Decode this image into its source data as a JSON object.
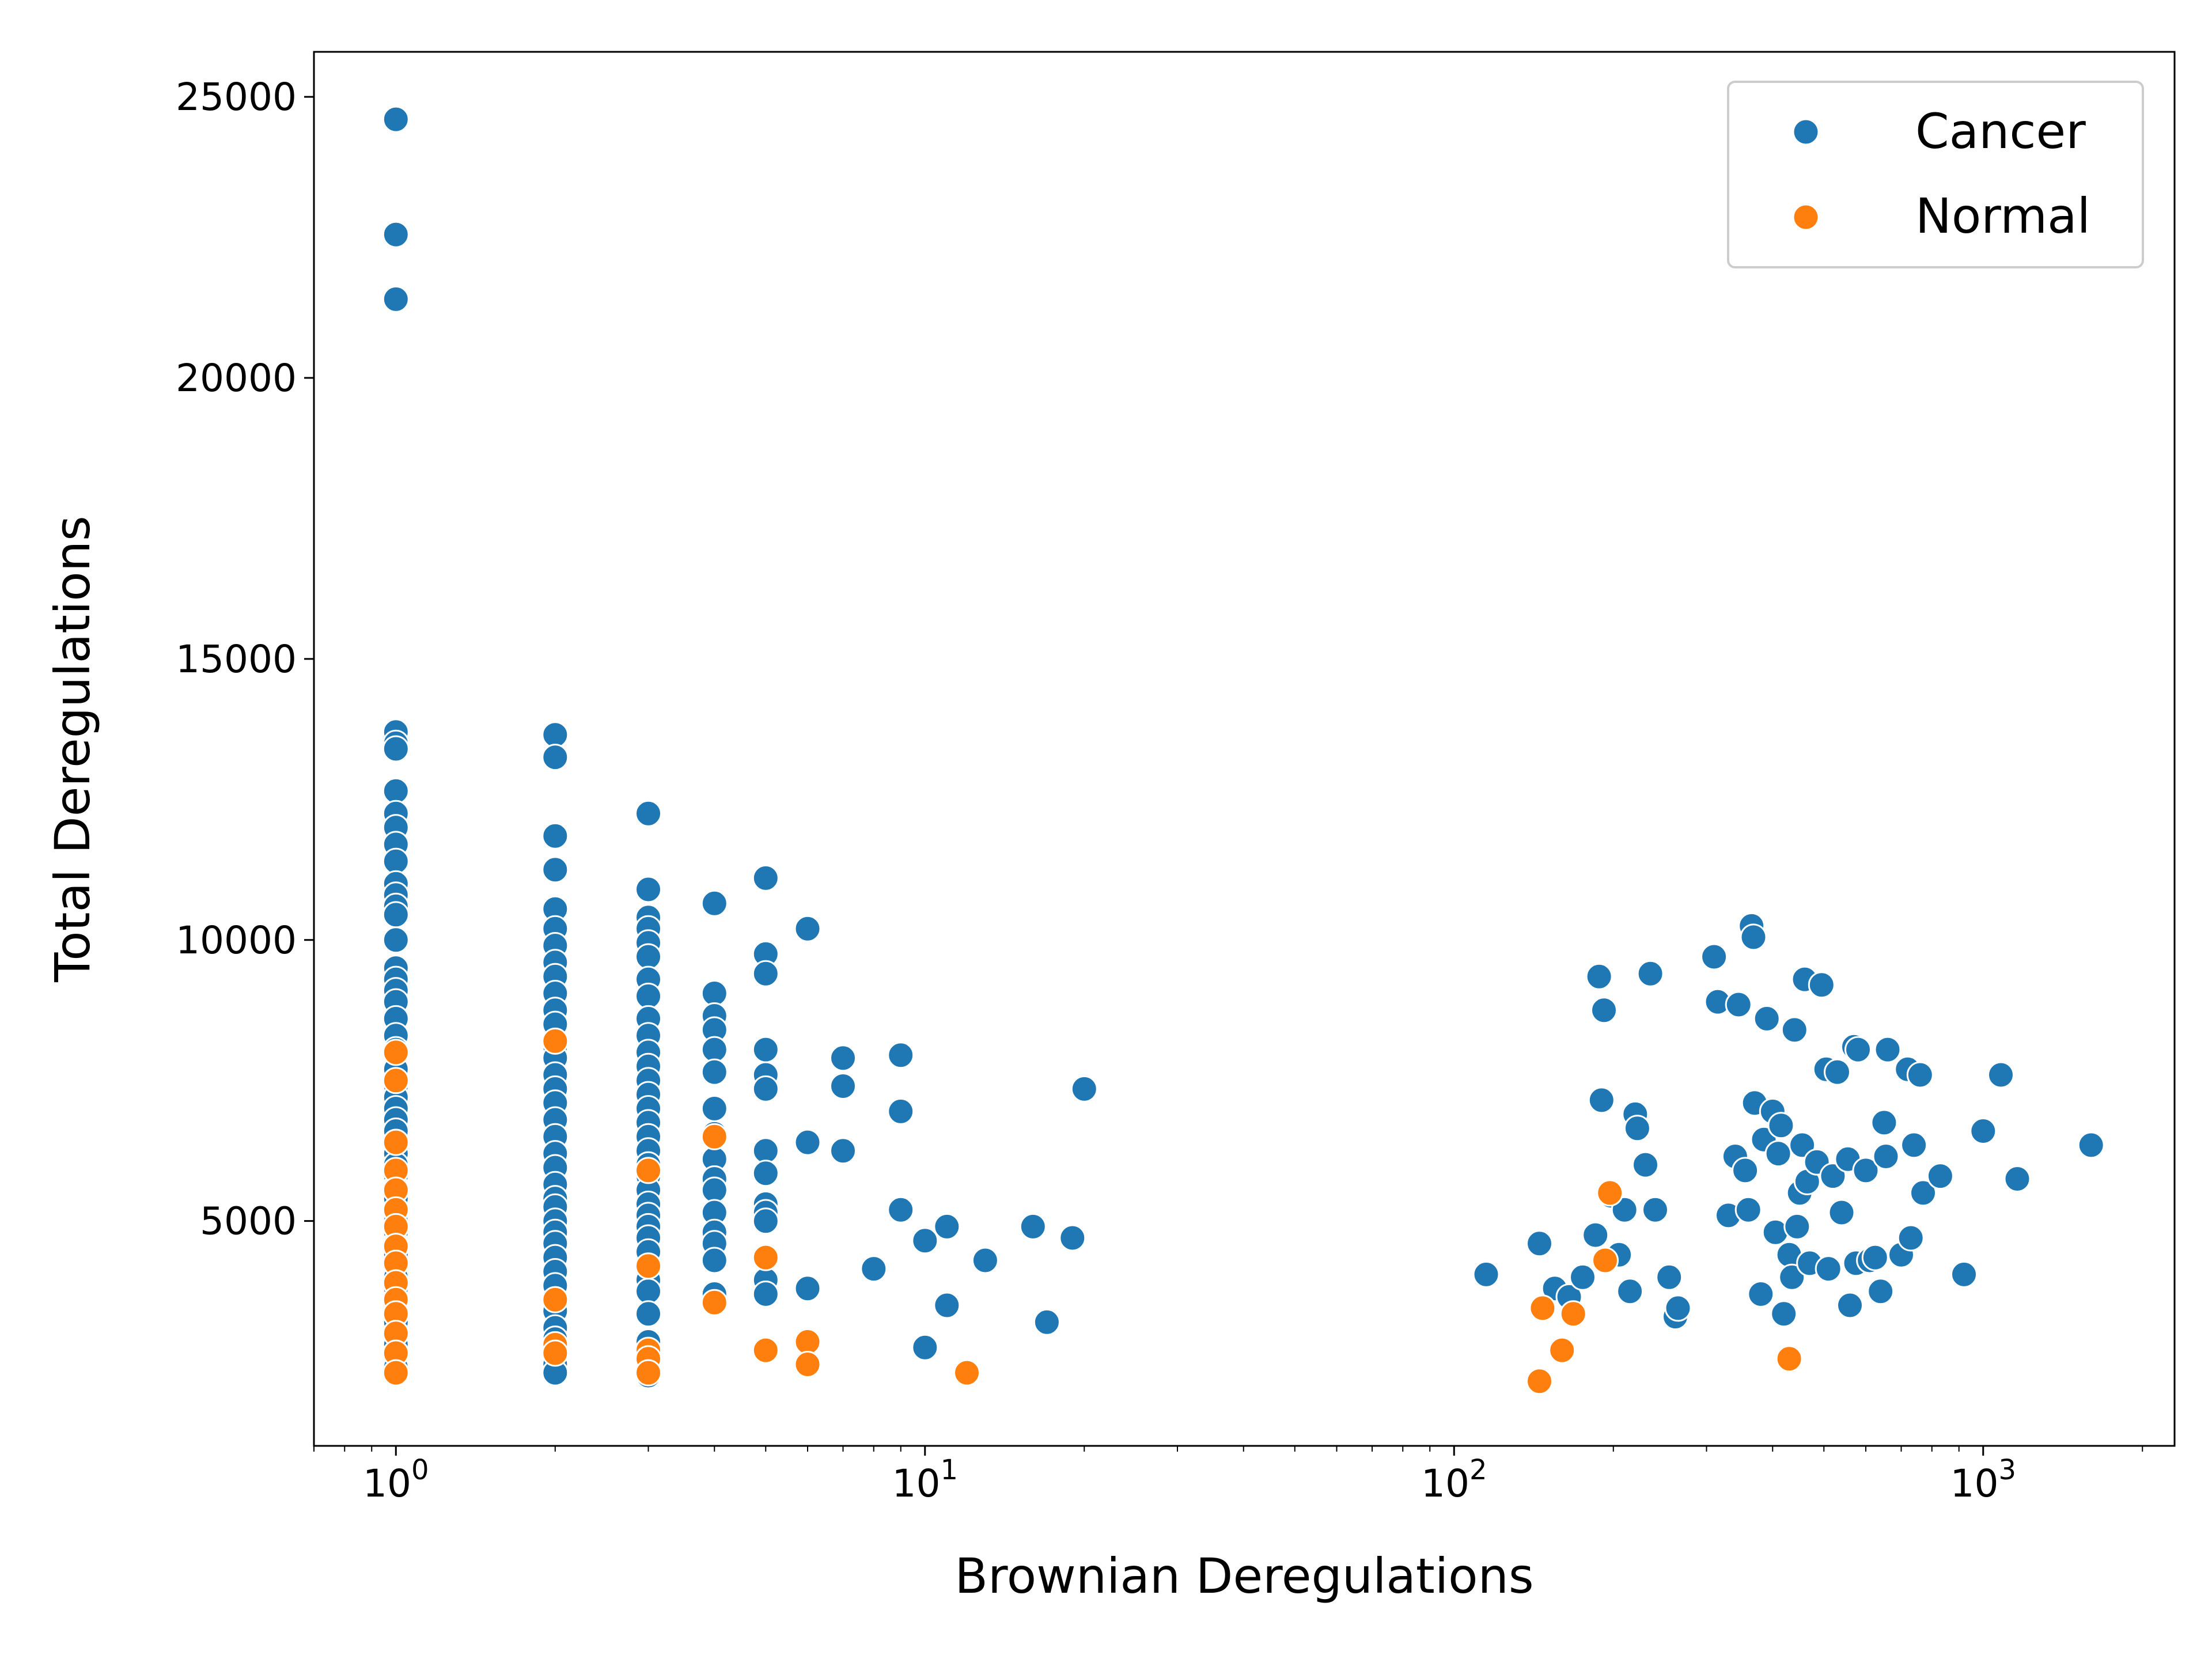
{
  "chart_data": {
    "type": "scatter",
    "xlabel": "Brownian Deregulations",
    "ylabel": "Total Deregulations",
    "x_scale": "log",
    "xlim": [
      0.7,
      2300
    ],
    "ylim": [
      1000,
      25800
    ],
    "x_ticks": [
      {
        "value": 1,
        "base": "10",
        "exp": "0"
      },
      {
        "value": 10,
        "base": "10",
        "exp": "1"
      },
      {
        "value": 100,
        "base": "10",
        "exp": "2"
      },
      {
        "value": 1000,
        "base": "10",
        "exp": "3"
      }
    ],
    "y_ticks": [
      {
        "value": 5000,
        "label": "5000"
      },
      {
        "value": 10000,
        "label": "10000"
      },
      {
        "value": 15000,
        "label": "15000"
      },
      {
        "value": 20000,
        "label": "20000"
      },
      {
        "value": 25000,
        "label": "25000"
      }
    ],
    "grid": false,
    "legend_position": "top-right",
    "series": [
      {
        "name": "Cancer",
        "color": "#1f77b4",
        "points": [
          [
            1,
            24600
          ],
          [
            1,
            22550
          ],
          [
            1,
            21400
          ],
          [
            1,
            13700
          ],
          [
            1,
            13500
          ],
          [
            1,
            13400
          ],
          [
            1,
            12650
          ],
          [
            1,
            12250
          ],
          [
            1,
            12000
          ],
          [
            1,
            11700
          ],
          [
            1,
            11400
          ],
          [
            1,
            11000
          ],
          [
            1,
            10800
          ],
          [
            1,
            10600
          ],
          [
            1,
            10450
          ],
          [
            1,
            10000
          ],
          [
            1,
            9500
          ],
          [
            1,
            9300
          ],
          [
            1,
            9100
          ],
          [
            1,
            8900
          ],
          [
            1,
            8600
          ],
          [
            1,
            8300
          ],
          [
            1,
            8050
          ],
          [
            1,
            7700
          ],
          [
            1,
            7400
          ],
          [
            1,
            7200
          ],
          [
            1,
            7000
          ],
          [
            1,
            6800
          ],
          [
            1,
            6600
          ],
          [
            1,
            6400
          ],
          [
            1,
            6200
          ],
          [
            1,
            6000
          ],
          [
            1,
            5800
          ],
          [
            1,
            5600
          ],
          [
            1,
            5400
          ],
          [
            1,
            5200
          ],
          [
            1,
            5000
          ],
          [
            1,
            4800
          ],
          [
            1,
            4600
          ],
          [
            1,
            4400
          ],
          [
            1,
            4200
          ],
          [
            1,
            4000
          ],
          [
            1,
            3800
          ],
          [
            1,
            3600
          ],
          [
            1,
            3400
          ],
          [
            1,
            3200
          ],
          [
            1,
            3000
          ],
          [
            1,
            2800
          ],
          [
            1,
            2600
          ],
          [
            1,
            2400
          ],
          [
            2,
            13650
          ],
          [
            2,
            13250
          ],
          [
            2,
            11850
          ],
          [
            2,
            11250
          ],
          [
            2,
            10550
          ],
          [
            2,
            10200
          ],
          [
            2,
            9900
          ],
          [
            2,
            9600
          ],
          [
            2,
            9350
          ],
          [
            2,
            9050
          ],
          [
            2,
            8750
          ],
          [
            2,
            8500
          ],
          [
            2,
            8100
          ],
          [
            2,
            7900
          ],
          [
            2,
            7600
          ],
          [
            2,
            7350
          ],
          [
            2,
            7100
          ],
          [
            2,
            6800
          ],
          [
            2,
            6500
          ],
          [
            2,
            6200
          ],
          [
            2,
            5950
          ],
          [
            2,
            5650
          ],
          [
            2,
            5400
          ],
          [
            2,
            5250
          ],
          [
            2,
            5000
          ],
          [
            2,
            4800
          ],
          [
            2,
            4600
          ],
          [
            2,
            4350
          ],
          [
            2,
            4100
          ],
          [
            2,
            3850
          ],
          [
            2,
            3600
          ],
          [
            2,
            3400
          ],
          [
            2,
            3100
          ],
          [
            2,
            2900
          ],
          [
            2,
            2650
          ],
          [
            2,
            2450
          ],
          [
            2,
            2300
          ],
          [
            3,
            12250
          ],
          [
            3,
            10900
          ],
          [
            3,
            10400
          ],
          [
            3,
            10200
          ],
          [
            3,
            9950
          ],
          [
            3,
            9700
          ],
          [
            3,
            9300
          ],
          [
            3,
            9000
          ],
          [
            3,
            8600
          ],
          [
            3,
            8300
          ],
          [
            3,
            8000
          ],
          [
            3,
            7750
          ],
          [
            3,
            7500
          ],
          [
            3,
            7250
          ],
          [
            3,
            7000
          ],
          [
            3,
            6750
          ],
          [
            3,
            6500
          ],
          [
            3,
            6250
          ],
          [
            3,
            6000
          ],
          [
            3,
            5800
          ],
          [
            3,
            5550
          ],
          [
            3,
            5300
          ],
          [
            3,
            5100
          ],
          [
            3,
            4900
          ],
          [
            3,
            4700
          ],
          [
            3,
            4450
          ],
          [
            3,
            4150
          ],
          [
            3,
            3950
          ],
          [
            3,
            3750
          ],
          [
            3,
            3350
          ],
          [
            3,
            2850
          ],
          [
            3,
            2500
          ],
          [
            3,
            2250
          ],
          [
            4,
            10650
          ],
          [
            4,
            9050
          ],
          [
            4,
            8650
          ],
          [
            4,
            8400
          ],
          [
            4,
            8050
          ],
          [
            4,
            7650
          ],
          [
            4,
            7000
          ],
          [
            4,
            6550
          ],
          [
            4,
            6100
          ],
          [
            4,
            5750
          ],
          [
            4,
            5550
          ],
          [
            4,
            5150
          ],
          [
            4,
            4800
          ],
          [
            4,
            4600
          ],
          [
            4,
            4300
          ],
          [
            4,
            3700
          ],
          [
            5,
            11100
          ],
          [
            5,
            9750
          ],
          [
            5,
            9400
          ],
          [
            5,
            8050
          ],
          [
            5,
            7600
          ],
          [
            5,
            7350
          ],
          [
            5,
            6250
          ],
          [
            5,
            5850
          ],
          [
            5,
            5300
          ],
          [
            5,
            5150
          ],
          [
            5,
            5000
          ],
          [
            5,
            3950
          ],
          [
            5,
            3700
          ],
          [
            6,
            10200
          ],
          [
            6,
            6400
          ],
          [
            6,
            3800
          ],
          [
            7,
            7900
          ],
          [
            7,
            7400
          ],
          [
            7,
            6250
          ],
          [
            8,
            4150
          ],
          [
            9,
            7950
          ],
          [
            9,
            6950
          ],
          [
            9,
            5200
          ],
          [
            10,
            4650
          ],
          [
            10,
            2750
          ],
          [
            11,
            4900
          ],
          [
            11,
            3500
          ],
          [
            13,
            4300
          ],
          [
            16,
            4900
          ],
          [
            17,
            3200
          ],
          [
            19,
            4700
          ],
          [
            20,
            7350
          ],
          [
            115,
            4050
          ],
          [
            145,
            4600
          ],
          [
            155,
            3800
          ],
          [
            165,
            3650
          ],
          [
            175,
            4000
          ],
          [
            185,
            4750
          ],
          [
            188,
            9350
          ],
          [
            190,
            7150
          ],
          [
            192,
            8750
          ],
          [
            198,
            5450
          ],
          [
            205,
            4400
          ],
          [
            210,
            5200
          ],
          [
            215,
            3750
          ],
          [
            220,
            6900
          ],
          [
            222,
            6650
          ],
          [
            230,
            6000
          ],
          [
            235,
            9400
          ],
          [
            240,
            5200
          ],
          [
            255,
            4000
          ],
          [
            262,
            3300
          ],
          [
            265,
            3450
          ],
          [
            310,
            9700
          ],
          [
            315,
            8900
          ],
          [
            330,
            5100
          ],
          [
            340,
            6150
          ],
          [
            345,
            8850
          ],
          [
            355,
            5900
          ],
          [
            360,
            5200
          ],
          [
            365,
            10250
          ],
          [
            368,
            10050
          ],
          [
            370,
            7100
          ],
          [
            380,
            3700
          ],
          [
            385,
            6450
          ],
          [
            390,
            8600
          ],
          [
            400,
            6950
          ],
          [
            405,
            4800
          ],
          [
            410,
            6200
          ],
          [
            415,
            6700
          ],
          [
            420,
            3350
          ],
          [
            430,
            4400
          ],
          [
            435,
            4000
          ],
          [
            440,
            8400
          ],
          [
            445,
            4900
          ],
          [
            450,
            5500
          ],
          [
            455,
            6350
          ],
          [
            460,
            9300
          ],
          [
            465,
            5700
          ],
          [
            470,
            4250
          ],
          [
            485,
            6050
          ],
          [
            495,
            9200
          ],
          [
            505,
            7700
          ],
          [
            510,
            4150
          ],
          [
            520,
            5800
          ],
          [
            530,
            7650
          ],
          [
            540,
            5150
          ],
          [
            555,
            6100
          ],
          [
            560,
            3500
          ],
          [
            570,
            8100
          ],
          [
            575,
            4250
          ],
          [
            580,
            8050
          ],
          [
            600,
            5900
          ],
          [
            610,
            4300
          ],
          [
            625,
            4350
          ],
          [
            640,
            3750
          ],
          [
            650,
            6750
          ],
          [
            655,
            6150
          ],
          [
            660,
            8050
          ],
          [
            700,
            4400
          ],
          [
            720,
            7700
          ],
          [
            730,
            4700
          ],
          [
            740,
            6350
          ],
          [
            760,
            7600
          ],
          [
            770,
            5500
          ],
          [
            830,
            5800
          ],
          [
            920,
            4050
          ],
          [
            1000,
            6600
          ],
          [
            1080,
            7600
          ],
          [
            1160,
            5750
          ],
          [
            1600,
            6350
          ]
        ]
      },
      {
        "name": "Normal",
        "color": "#ff7f0e",
        "points": [
          [
            1,
            8000
          ],
          [
            1,
            7500
          ],
          [
            1,
            6400
          ],
          [
            1,
            5900
          ],
          [
            1,
            5550
          ],
          [
            1,
            5200
          ],
          [
            1,
            4900
          ],
          [
            1,
            4550
          ],
          [
            1,
            4250
          ],
          [
            1,
            3900
          ],
          [
            1,
            3600
          ],
          [
            1,
            3350
          ],
          [
            1,
            3000
          ],
          [
            1,
            2650
          ],
          [
            1,
            2300
          ],
          [
            2,
            8200
          ],
          [
            2,
            3600
          ],
          [
            2,
            2800
          ],
          [
            2,
            2650
          ],
          [
            3,
            5900
          ],
          [
            3,
            4200
          ],
          [
            3,
            2700
          ],
          [
            3,
            2550
          ],
          [
            3,
            2300
          ],
          [
            4,
            6500
          ],
          [
            4,
            3550
          ],
          [
            5,
            4350
          ],
          [
            5,
            2700
          ],
          [
            6,
            2850
          ],
          [
            6,
            2450
          ],
          [
            12,
            2300
          ],
          [
            145,
            2150
          ],
          [
            147,
            3450
          ],
          [
            160,
            2700
          ],
          [
            168,
            3350
          ],
          [
            193,
            4300
          ],
          [
            197,
            5500
          ],
          [
            430,
            2550
          ]
        ]
      }
    ]
  }
}
